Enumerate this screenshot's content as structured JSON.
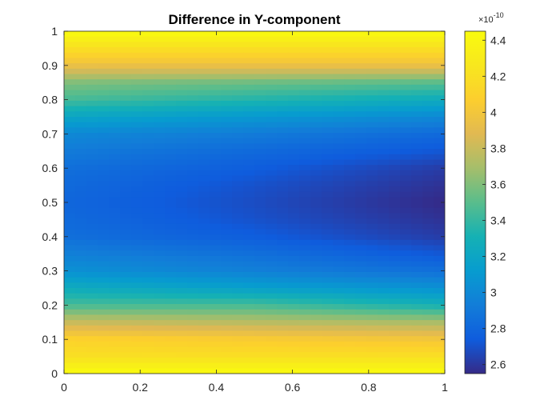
{
  "chart_data": {
    "type": "heatmap",
    "title": "Difference in Y-component",
    "xlabel": "",
    "ylabel": "",
    "xlim": [
      0,
      1
    ],
    "ylim": [
      0,
      1
    ],
    "x_ticks": [
      "0",
      "0.2",
      "0.4",
      "0.6",
      "0.8",
      "1"
    ],
    "y_ticks": [
      "0",
      "0.1",
      "0.2",
      "0.3",
      "0.4",
      "0.5",
      "0.6",
      "0.7",
      "0.8",
      "0.9",
      "1"
    ],
    "colormap": "parula",
    "colorbar": {
      "range": [
        2.55,
        4.45
      ],
      "ticks": [
        "2.6",
        "2.8",
        "3",
        "3.2",
        "3.4",
        "3.6",
        "3.8",
        "4",
        "4.2",
        "4.4"
      ],
      "exponent_base": "×10",
      "exponent": "-10"
    },
    "x": [
      0,
      0.5,
      1
    ],
    "y": [
      0,
      0.05,
      0.1,
      0.15,
      0.2,
      0.25,
      0.3,
      0.35,
      0.4,
      0.45,
      0.5,
      0.55,
      0.6,
      0.65,
      0.7,
      0.75,
      0.8,
      0.85,
      0.9,
      0.95,
      1
    ],
    "z": [
      [
        4.45,
        4.45,
        4.45
      ],
      [
        4.2,
        4.2,
        4.2
      ],
      [
        4.1,
        4.05,
        4.0
      ],
      [
        3.8,
        3.75,
        3.7
      ],
      [
        3.45,
        3.45,
        3.3
      ],
      [
        3.25,
        3.15,
        3.05
      ],
      [
        3.05,
        2.95,
        2.85
      ],
      [
        2.95,
        2.85,
        2.72
      ],
      [
        2.85,
        2.75,
        2.62
      ],
      [
        2.82,
        2.7,
        2.58
      ],
      [
        2.8,
        2.68,
        2.55
      ],
      [
        2.82,
        2.7,
        2.58
      ],
      [
        2.85,
        2.75,
        2.62
      ],
      [
        2.92,
        2.82,
        2.72
      ],
      [
        3.0,
        2.92,
        2.82
      ],
      [
        3.2,
        3.1,
        3.0
      ],
      [
        3.45,
        3.35,
        3.25
      ],
      [
        3.6,
        3.55,
        3.5
      ],
      [
        3.95,
        3.95,
        3.95
      ],
      [
        4.2,
        4.2,
        4.2
      ],
      [
        4.45,
        4.45,
        4.45
      ]
    ]
  }
}
